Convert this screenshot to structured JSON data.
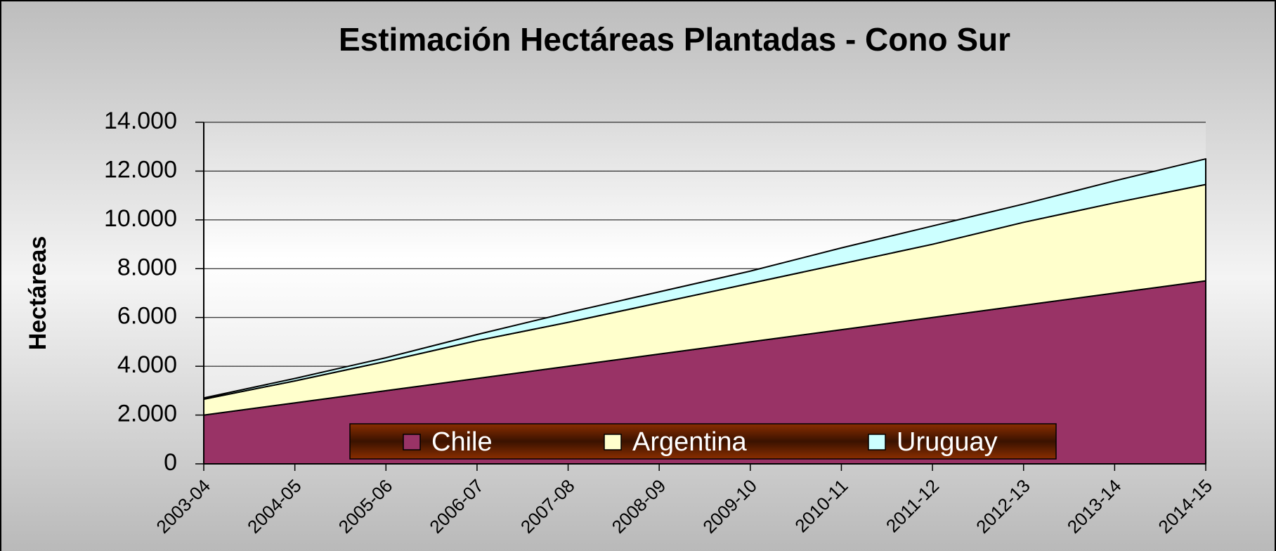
{
  "chart_data": {
    "type": "stacked_area",
    "title": "Estimación Hectáreas Plantadas - Cono Sur",
    "y_label": "Hectáreas",
    "categories": [
      "2003-04",
      "2004-05",
      "2005-06",
      "2006-07",
      "2007-08",
      "2008-09",
      "2009-10",
      "2010-11",
      "2011-12",
      "2012-13",
      "2013-14",
      "2014-15"
    ],
    "series": [
      {
        "name": "Chile",
        "color": "#993366",
        "values": [
          2000,
          2500,
          3000,
          3500,
          4000,
          4500,
          5000,
          5500,
          6000,
          6500,
          7000,
          7500
        ]
      },
      {
        "name": "Argentina",
        "color": "#ffffcc",
        "values": [
          650,
          900,
          1200,
          1550,
          1800,
          2100,
          2400,
          2700,
          3000,
          3400,
          3700,
          3950
        ]
      },
      {
        "name": "Uruguay",
        "color": "#ccffff",
        "values": [
          50,
          100,
          150,
          250,
          400,
          450,
          500,
          650,
          750,
          750,
          900,
          1050
        ]
      }
    ],
    "ylim": [
      0,
      14000
    ],
    "yticks": [
      0,
      {
        "value": 2000,
        "label": "2.000"
      },
      {
        "value": 4000,
        "label": "4.000"
      },
      {
        "value": 6000,
        "label": "6.000"
      },
      {
        "value": 8000,
        "label": "8.000"
      },
      {
        "value": 10000,
        "label": "10.000"
      },
      {
        "value": 12000,
        "label": "12.000"
      },
      {
        "value": 14000,
        "label": "14.000"
      }
    ],
    "grid": true,
    "legend": "bottom"
  }
}
